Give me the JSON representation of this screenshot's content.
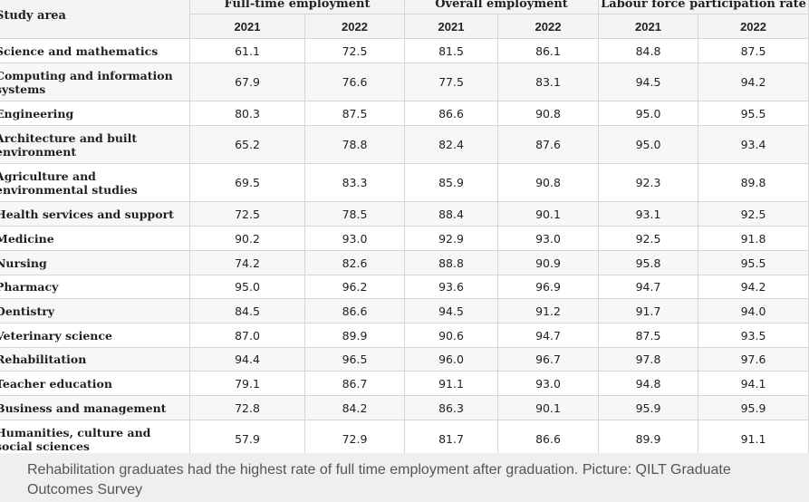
{
  "table": {
    "study_area_header": "Study area",
    "groups": [
      {
        "label": "Full-time employment",
        "years": [
          "2021",
          "2022"
        ]
      },
      {
        "label": "Overall employment",
        "years": [
          "2021",
          "2022"
        ]
      },
      {
        "label": "Labour force participation rate",
        "years": [
          "2021",
          "2022"
        ]
      }
    ],
    "rows": [
      {
        "area": "Science and mathematics",
        "values": [
          "61.1",
          "72.5",
          "81.5",
          "86.1",
          "84.8",
          "87.5"
        ]
      },
      {
        "area": "Computing and information systems",
        "values": [
          "67.9",
          "76.6",
          "77.5",
          "83.1",
          "94.5",
          "94.2"
        ]
      },
      {
        "area": "Engineering",
        "values": [
          "80.3",
          "87.5",
          "86.6",
          "90.8",
          "95.0",
          "95.5"
        ]
      },
      {
        "area": "Architecture and built environment",
        "values": [
          "65.2",
          "78.8",
          "82.4",
          "87.6",
          "95.0",
          "93.4"
        ]
      },
      {
        "area": "Agriculture and environmental studies",
        "values": [
          "69.5",
          "83.3",
          "85.9",
          "90.8",
          "92.3",
          "89.8"
        ]
      },
      {
        "area": "Health services and support",
        "values": [
          "72.5",
          "78.5",
          "88.4",
          "90.1",
          "93.1",
          "92.5"
        ]
      },
      {
        "area": "Medicine",
        "values": [
          "90.2",
          "93.0",
          "92.9",
          "93.0",
          "92.5",
          "91.8"
        ]
      },
      {
        "area": "Nursing",
        "values": [
          "74.2",
          "82.6",
          "88.8",
          "90.9",
          "95.8",
          "95.5"
        ]
      },
      {
        "area": "Pharmacy",
        "values": [
          "95.0",
          "96.2",
          "93.6",
          "96.9",
          "94.7",
          "94.2"
        ]
      },
      {
        "area": "Dentistry",
        "values": [
          "84.5",
          "86.6",
          "94.5",
          "91.2",
          "91.7",
          "94.0"
        ]
      },
      {
        "area": "Veterinary science",
        "values": [
          "87.0",
          "89.9",
          "90.6",
          "94.7",
          "87.5",
          "93.5"
        ]
      },
      {
        "area": "Rehabilitation",
        "values": [
          "94.4",
          "96.5",
          "96.0",
          "96.7",
          "97.8",
          "97.6"
        ]
      },
      {
        "area": "Teacher education",
        "values": [
          "79.1",
          "86.7",
          "91.1",
          "93.0",
          "94.8",
          "94.1"
        ]
      },
      {
        "area": "Business and management",
        "values": [
          "72.8",
          "84.2",
          "86.3",
          "90.1",
          "95.9",
          "95.9"
        ]
      },
      {
        "area": "Humanities, culture and social sciences",
        "values": [
          "57.9",
          "72.9",
          "81.7",
          "86.6",
          "89.9",
          "91.1"
        ]
      }
    ]
  },
  "caption": "Rehabilitation graduates had the highest rate of full time employment after graduation. Picture: QILT Graduate Outcomes Survey"
}
